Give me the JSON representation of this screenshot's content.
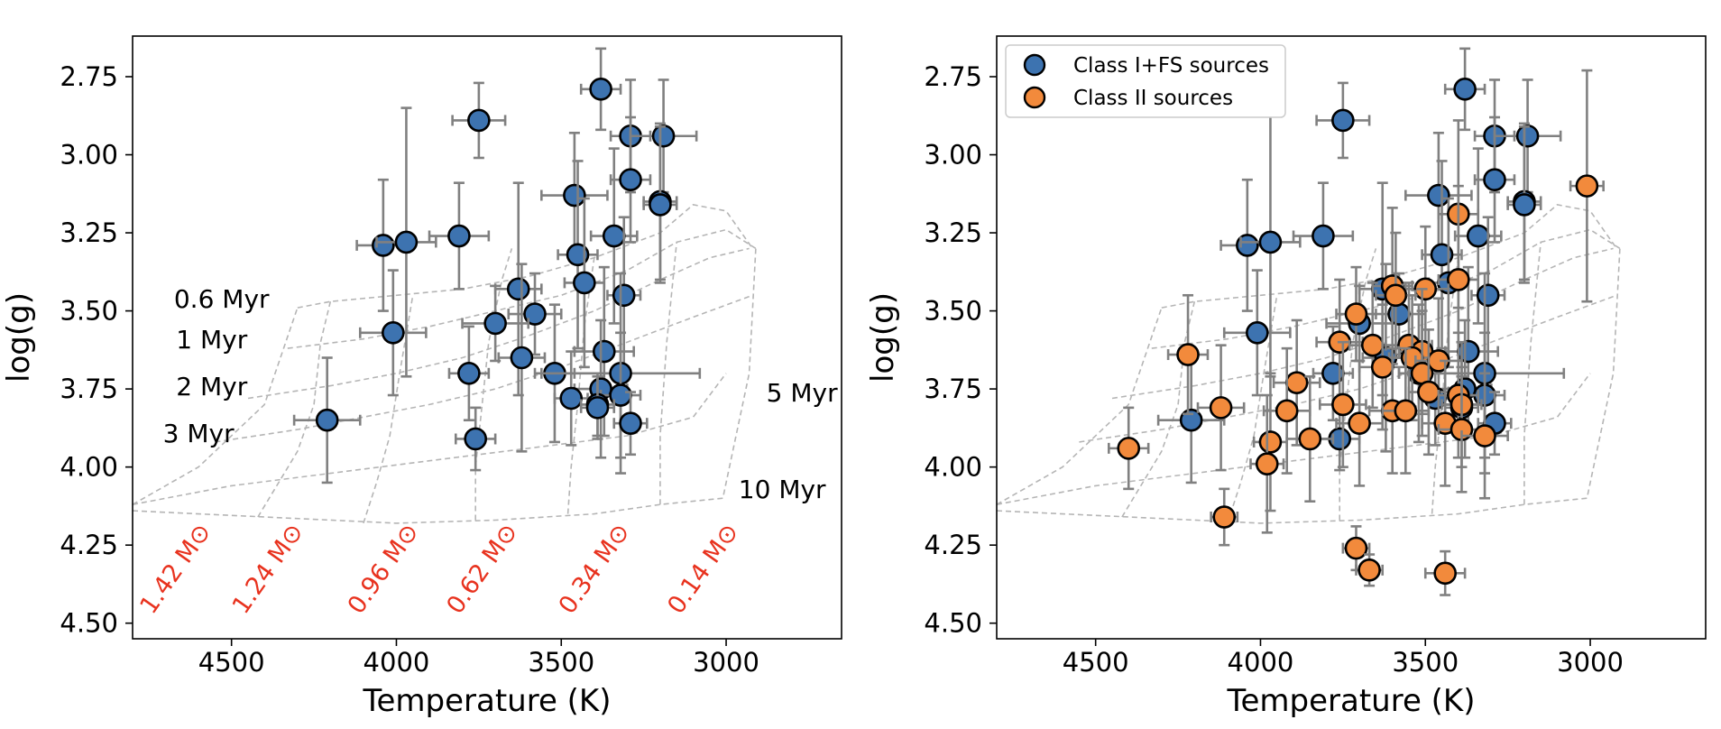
{
  "chart_data": [
    {
      "type": "scatter",
      "panel": "left",
      "xlabel": "Temperature (K)",
      "ylabel": "log(g)",
      "xlim": [
        4800,
        2650
      ],
      "ylim": [
        4.55,
        2.62
      ],
      "x_ticks": [
        {
          "value": 4500,
          "label": "4500"
        },
        {
          "value": 4000,
          "label": "4000"
        },
        {
          "value": 3500,
          "label": "3500"
        },
        {
          "value": 3000,
          "label": "3000"
        }
      ],
      "y_ticks": [
        {
          "value": 2.75,
          "label": "2.75"
        },
        {
          "value": 3.0,
          "label": "3.00"
        },
        {
          "value": 3.25,
          "label": "3.25"
        },
        {
          "value": 3.5,
          "label": "3.50"
        },
        {
          "value": 3.75,
          "label": "3.75"
        },
        {
          "value": 4.0,
          "label": "4.00"
        },
        {
          "value": 4.25,
          "label": "4.25"
        },
        {
          "value": 4.5,
          "label": "4.50"
        }
      ],
      "isochrone_labels": [
        {
          "text": "0.6 Myr",
          "at": [
            4530,
            3.49
          ]
        },
        {
          "text": "1 Myr",
          "at": [
            4560,
            3.62
          ]
        },
        {
          "text": "2 Myr",
          "at": [
            4560,
            3.77
          ]
        },
        {
          "text": "3 Myr",
          "at": [
            4600,
            3.92
          ]
        },
        {
          "text": "5 Myr",
          "at": [
            2770,
            3.79
          ]
        },
        {
          "text": "10 Myr",
          "at": [
            2830,
            4.1
          ]
        }
      ],
      "mass_labels": [
        {
          "text": "1.42 M⊙",
          "at": [
            4650,
            4.34
          ]
        },
        {
          "text": "1.24 M⊙",
          "at": [
            4370,
            4.34
          ]
        },
        {
          "text": "0.96 M⊙",
          "at": [
            4020,
            4.34
          ]
        },
        {
          "text": "0.62 M⊙",
          "at": [
            3720,
            4.34
          ]
        },
        {
          "text": "0.34 M⊙",
          "at": [
            3380,
            4.34
          ]
        },
        {
          "text": "0.14 M⊙",
          "at": [
            3050,
            4.34
          ]
        }
      ],
      "series": [
        {
          "name": "Class I+FS sources",
          "color": "#3d73b0",
          "points": [
            {
              "x": 3380,
              "y": 2.79,
              "xerr": 60,
              "yerr": 0.13
            },
            {
              "x": 3750,
              "y": 2.89,
              "xerr": 80,
              "yerr": 0.12
            },
            {
              "x": 3290,
              "y": 2.94,
              "xerr": 60,
              "yerr": 0.18
            },
            {
              "x": 3190,
              "y": 2.94,
              "xerr": 100,
              "yerr": 0.18
            },
            {
              "x": 3290,
              "y": 3.08,
              "xerr": 60,
              "yerr": 0.2
            },
            {
              "x": 3460,
              "y": 3.13,
              "xerr": 100,
              "yerr": 0.2
            },
            {
              "x": 3200,
              "y": 3.15,
              "xerr": 50,
              "yerr": 0.25
            },
            {
              "x": 3200,
              "y": 3.16,
              "xerr": 50,
              "yerr": 0.25
            },
            {
              "x": 4040,
              "y": 3.29,
              "xerr": 80,
              "yerr": 0.21
            },
            {
              "x": 3970,
              "y": 3.28,
              "xerr": 90,
              "yerr": 0.43
            },
            {
              "x": 3810,
              "y": 3.26,
              "xerr": 90,
              "yerr": 0.17
            },
            {
              "x": 3340,
              "y": 3.26,
              "xerr": 70,
              "yerr": 0.28
            },
            {
              "x": 3450,
              "y": 3.32,
              "xerr": 60,
              "yerr": 0.3
            },
            {
              "x": 3430,
              "y": 3.41,
              "xerr": 60,
              "yerr": 0.27
            },
            {
              "x": 3630,
              "y": 3.43,
              "xerr": 70,
              "yerr": 0.34
            },
            {
              "x": 3310,
              "y": 3.45,
              "xerr": 50,
              "yerr": 0.25
            },
            {
              "x": 3580,
              "y": 3.51,
              "xerr": 80,
              "yerr": 0.13
            },
            {
              "x": 3700,
              "y": 3.54,
              "xerr": 100,
              "yerr": 0.12
            },
            {
              "x": 4010,
              "y": 3.57,
              "xerr": 100,
              "yerr": 0.2
            },
            {
              "x": 3370,
              "y": 3.63,
              "xerr": 90,
              "yerr": 0.27
            },
            {
              "x": 3620,
              "y": 3.65,
              "xerr": 70,
              "yerr": 0.3
            },
            {
              "x": 3780,
              "y": 3.7,
              "xerr": 60,
              "yerr": 0.15
            },
            {
              "x": 3520,
              "y": 3.7,
              "xerr": 60,
              "yerr": 0.22
            },
            {
              "x": 3320,
              "y": 3.7,
              "xerr": 240,
              "yerr": 0.32
            },
            {
              "x": 3380,
              "y": 3.75,
              "xerr": 80,
              "yerr": 0.22
            },
            {
              "x": 3320,
              "y": 3.77,
              "xerr": 60,
              "yerr": 0.2
            },
            {
              "x": 3470,
              "y": 3.78,
              "xerr": 50,
              "yerr": 0.15
            },
            {
              "x": 3390,
              "y": 3.8,
              "xerr": 50,
              "yerr": 0.1
            },
            {
              "x": 3390,
              "y": 3.81,
              "xerr": 50,
              "yerr": 0.1
            },
            {
              "x": 3290,
              "y": 3.86,
              "xerr": 50,
              "yerr": 0.1
            },
            {
              "x": 4210,
              "y": 3.85,
              "xerr": 100,
              "yerr": 0.2
            },
            {
              "x": 3760,
              "y": 3.91,
              "xerr": 60,
              "yerr": 0.1
            }
          ]
        }
      ]
    },
    {
      "type": "scatter",
      "panel": "right",
      "xlabel": "Temperature (K)",
      "ylabel": "log(g)",
      "xlim": [
        4800,
        2650
      ],
      "ylim": [
        4.55,
        2.62
      ],
      "x_ticks": [
        {
          "value": 4500,
          "label": "4500"
        },
        {
          "value": 4000,
          "label": "4000"
        },
        {
          "value": 3500,
          "label": "3500"
        },
        {
          "value": 3000,
          "label": "3000"
        }
      ],
      "y_ticks": [
        {
          "value": 2.75,
          "label": "2.75"
        },
        {
          "value": 3.0,
          "label": "3.00"
        },
        {
          "value": 3.25,
          "label": "3.25"
        },
        {
          "value": 3.5,
          "label": "3.50"
        },
        {
          "value": 3.75,
          "label": "3.75"
        },
        {
          "value": 4.0,
          "label": "4.00"
        },
        {
          "value": 4.25,
          "label": "4.25"
        },
        {
          "value": 4.5,
          "label": "4.50"
        }
      ],
      "legend": {
        "placement": "top-left",
        "entries": [
          {
            "label": "Class I+FS sources",
            "color": "#3d73b0"
          },
          {
            "label": "Class II sources",
            "color": "#f28a3c"
          }
        ]
      },
      "series": [
        {
          "name": "Class I+FS sources",
          "color": "#3d73b0",
          "points": [
            {
              "x": 3380,
              "y": 2.79,
              "xerr": 60,
              "yerr": 0.13
            },
            {
              "x": 3750,
              "y": 2.89,
              "xerr": 80,
              "yerr": 0.12
            },
            {
              "x": 3290,
              "y": 2.94,
              "xerr": 60,
              "yerr": 0.18
            },
            {
              "x": 3190,
              "y": 2.94,
              "xerr": 100,
              "yerr": 0.18
            },
            {
              "x": 3290,
              "y": 3.08,
              "xerr": 60,
              "yerr": 0.2
            },
            {
              "x": 3460,
              "y": 3.13,
              "xerr": 100,
              "yerr": 0.2
            },
            {
              "x": 3200,
              "y": 3.15,
              "xerr": 50,
              "yerr": 0.25
            },
            {
              "x": 3200,
              "y": 3.16,
              "xerr": 50,
              "yerr": 0.25
            },
            {
              "x": 4040,
              "y": 3.29,
              "xerr": 80,
              "yerr": 0.21
            },
            {
              "x": 3970,
              "y": 3.28,
              "xerr": 90,
              "yerr": 0.43
            },
            {
              "x": 3810,
              "y": 3.26,
              "xerr": 90,
              "yerr": 0.17
            },
            {
              "x": 3340,
              "y": 3.26,
              "xerr": 70,
              "yerr": 0.28
            },
            {
              "x": 3450,
              "y": 3.32,
              "xerr": 60,
              "yerr": 0.3
            },
            {
              "x": 3430,
              "y": 3.41,
              "xerr": 60,
              "yerr": 0.27
            },
            {
              "x": 3630,
              "y": 3.43,
              "xerr": 70,
              "yerr": 0.34
            },
            {
              "x": 3310,
              "y": 3.45,
              "xerr": 50,
              "yerr": 0.25
            },
            {
              "x": 3580,
              "y": 3.51,
              "xerr": 80,
              "yerr": 0.13
            },
            {
              "x": 3700,
              "y": 3.54,
              "xerr": 100,
              "yerr": 0.12
            },
            {
              "x": 4010,
              "y": 3.57,
              "xerr": 100,
              "yerr": 0.2
            },
            {
              "x": 3370,
              "y": 3.63,
              "xerr": 90,
              "yerr": 0.27
            },
            {
              "x": 3620,
              "y": 3.65,
              "xerr": 70,
              "yerr": 0.3
            },
            {
              "x": 3780,
              "y": 3.7,
              "xerr": 60,
              "yerr": 0.15
            },
            {
              "x": 3520,
              "y": 3.7,
              "xerr": 60,
              "yerr": 0.22
            },
            {
              "x": 3320,
              "y": 3.7,
              "xerr": 240,
              "yerr": 0.32
            },
            {
              "x": 3380,
              "y": 3.75,
              "xerr": 80,
              "yerr": 0.22
            },
            {
              "x": 3320,
              "y": 3.77,
              "xerr": 60,
              "yerr": 0.2
            },
            {
              "x": 3470,
              "y": 3.78,
              "xerr": 50,
              "yerr": 0.15
            },
            {
              "x": 3390,
              "y": 3.8,
              "xerr": 50,
              "yerr": 0.1
            },
            {
              "x": 3390,
              "y": 3.81,
              "xerr": 50,
              "yerr": 0.1
            },
            {
              "x": 3290,
              "y": 3.86,
              "xerr": 50,
              "yerr": 0.1
            },
            {
              "x": 4210,
              "y": 3.85,
              "xerr": 100,
              "yerr": 0.2
            },
            {
              "x": 3760,
              "y": 3.91,
              "xerr": 60,
              "yerr": 0.1
            }
          ]
        },
        {
          "name": "Class II sources",
          "color": "#f28a3c",
          "points": [
            {
              "x": 3010,
              "y": 3.1,
              "xerr": 50,
              "yerr": 0.37
            },
            {
              "x": 3400,
              "y": 3.19,
              "xerr": 60,
              "yerr": 0.3
            },
            {
              "x": 3400,
              "y": 3.4,
              "xerr": 60,
              "yerr": 0.3
            },
            {
              "x": 3600,
              "y": 3.42,
              "xerr": 60,
              "yerr": 0.25
            },
            {
              "x": 3500,
              "y": 3.43,
              "xerr": 70,
              "yerr": 0.2
            },
            {
              "x": 3590,
              "y": 3.45,
              "xerr": 60,
              "yerr": 0.2
            },
            {
              "x": 3710,
              "y": 3.51,
              "xerr": 60,
              "yerr": 0.15
            },
            {
              "x": 3760,
              "y": 3.6,
              "xerr": 70,
              "yerr": 0.2
            },
            {
              "x": 3660,
              "y": 3.61,
              "xerr": 70,
              "yerr": 0.2
            },
            {
              "x": 3550,
              "y": 3.61,
              "xerr": 70,
              "yerr": 0.2
            },
            {
              "x": 3510,
              "y": 3.63,
              "xerr": 70,
              "yerr": 0.2
            },
            {
              "x": 3540,
              "y": 3.65,
              "xerr": 70,
              "yerr": 0.2
            },
            {
              "x": 3460,
              "y": 3.66,
              "xerr": 70,
              "yerr": 0.2
            },
            {
              "x": 3630,
              "y": 3.68,
              "xerr": 70,
              "yerr": 0.2
            },
            {
              "x": 3510,
              "y": 3.7,
              "xerr": 70,
              "yerr": 0.2
            },
            {
              "x": 3890,
              "y": 3.73,
              "xerr": 70,
              "yerr": 0.2
            },
            {
              "x": 3490,
              "y": 3.76,
              "xerr": 60,
              "yerr": 0.2
            },
            {
              "x": 3400,
              "y": 3.77,
              "xerr": 60,
              "yerr": 0.2
            },
            {
              "x": 3390,
              "y": 3.8,
              "xerr": 60,
              "yerr": 0.2
            },
            {
              "x": 3750,
              "y": 3.8,
              "xerr": 70,
              "yerr": 0.2
            },
            {
              "x": 3600,
              "y": 3.82,
              "xerr": 70,
              "yerr": 0.2
            },
            {
              "x": 3560,
              "y": 3.82,
              "xerr": 70,
              "yerr": 0.2
            },
            {
              "x": 3920,
              "y": 3.82,
              "xerr": 70,
              "yerr": 0.2
            },
            {
              "x": 4120,
              "y": 3.81,
              "xerr": 70,
              "yerr": 0.2
            },
            {
              "x": 3700,
              "y": 3.86,
              "xerr": 70,
              "yerr": 0.2
            },
            {
              "x": 3440,
              "y": 3.86,
              "xerr": 70,
              "yerr": 0.2
            },
            {
              "x": 3390,
              "y": 3.88,
              "xerr": 70,
              "yerr": 0.2
            },
            {
              "x": 3320,
              "y": 3.9,
              "xerr": 70,
              "yerr": 0.2
            },
            {
              "x": 3850,
              "y": 3.91,
              "xerr": 70,
              "yerr": 0.2
            },
            {
              "x": 3970,
              "y": 3.92,
              "xerr": 50,
              "yerr": 0.22
            },
            {
              "x": 4400,
              "y": 3.94,
              "xerr": 60,
              "yerr": 0.13
            },
            {
              "x": 3980,
              "y": 3.99,
              "xerr": 50,
              "yerr": 0.22
            },
            {
              "x": 4220,
              "y": 3.64,
              "xerr": 60,
              "yerr": 0.19
            },
            {
              "x": 4110,
              "y": 4.16,
              "xerr": 40,
              "yerr": 0.09
            },
            {
              "x": 3710,
              "y": 4.26,
              "xerr": 40,
              "yerr": 0.07
            },
            {
              "x": 3670,
              "y": 4.33,
              "xerr": 40,
              "yerr": 0.05
            },
            {
              "x": 3440,
              "y": 4.34,
              "xerr": 60,
              "yerr": 0.07
            }
          ]
        }
      ]
    }
  ]
}
